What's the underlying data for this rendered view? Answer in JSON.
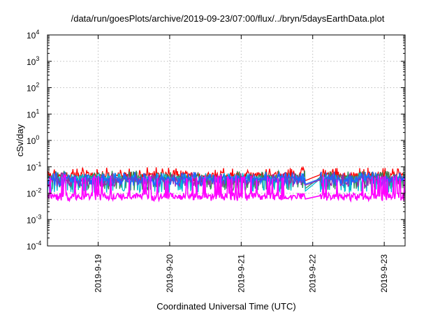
{
  "chart_data": {
    "type": "line",
    "title": "/data/run/goesPlots/archive/2019-09-23/07:00/flux/../bryn/5daysEarthData.plot",
    "xlabel": "Coordinated Universal Time (UTC)",
    "ylabel": "cSv/day",
    "yscale": "log",
    "ylim": [
      0.0001,
      10000
    ],
    "y_ticks": [
      {
        "base": "10",
        "exp": "-4"
      },
      {
        "base": "10",
        "exp": "-3"
      },
      {
        "base": "10",
        "exp": "-2"
      },
      {
        "base": "10",
        "exp": "-1"
      },
      {
        "base": "10",
        "exp": "0"
      },
      {
        "base": "10",
        "exp": "1"
      },
      {
        "base": "10",
        "exp": "2"
      },
      {
        "base": "10",
        "exp": "3"
      },
      {
        "base": "10",
        "exp": "4"
      }
    ],
    "xlim": [
      "2019-09-18 07:00",
      "2019-09-23 07:00"
    ],
    "x_ticks": [
      "2019-9-19",
      "2019-9-20",
      "2019-9-21",
      "2019-9-22",
      "2019-9-23"
    ],
    "grid": true,
    "legend": "none",
    "gap": [
      "2019-09-21 21:30",
      "2019-09-22 02:30"
    ],
    "series": [
      {
        "color": "#ff0000",
        "level": 0.05,
        "low": 0.03,
        "high": 0.08
      },
      {
        "color": "#2e8b57",
        "level": 0.04,
        "low": 0.015,
        "high": 0.06
      },
      {
        "color": "#00bcd4",
        "level": 0.035,
        "low": 0.012,
        "high": 0.05
      },
      {
        "color": "#9c27b0",
        "level": 0.032,
        "low": 0.02,
        "high": 0.05
      },
      {
        "color": "#1e64ff",
        "level": 0.035,
        "low": 0.022,
        "high": 0.055
      },
      {
        "color": "#ff00ff",
        "level": 0.008,
        "low": 0.006,
        "high": 0.04
      }
    ]
  }
}
